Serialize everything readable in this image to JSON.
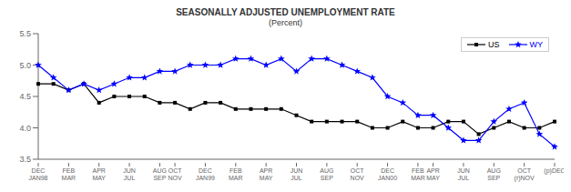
{
  "chart_data": {
    "type": "line",
    "title": "SEASONALLY ADJUSTED UNEMPLOYMENT RATE",
    "subtitle": "(Percent)",
    "categories": [
      "DEC\nJAN98",
      null,
      "FEB\nMAR",
      null,
      "APR\nMAY",
      null,
      "JUN\nJUL",
      null,
      "AUG\nSEP",
      "OCT\nNOV",
      null,
      "DEC\nJAN99",
      null,
      "FEB\nMAR",
      null,
      "APR\nMAY",
      null,
      "JUN\nJUL",
      null,
      "AUG\nSEP",
      null,
      "OCT\nNOV",
      null,
      "DEC\nJAN00",
      null,
      "FEB\nMAR",
      "APR\nMAY",
      null,
      "JUN\nJUL",
      null,
      "AUG\nSEP",
      null,
      "OCT\n(r)NOV",
      null,
      "(p)DEC"
    ],
    "series": [
      {
        "name": "US",
        "color": "#000000",
        "marker": "square",
        "values": [
          4.7,
          4.7,
          4.6,
          4.7,
          4.4,
          4.5,
          4.5,
          4.5,
          4.4,
          4.4,
          4.3,
          4.4,
          4.4,
          4.3,
          4.3,
          4.3,
          4.3,
          4.2,
          4.1,
          4.1,
          4.1,
          4.1,
          4.0,
          4.0,
          4.1,
          4.0,
          4.0,
          4.1,
          4.1,
          3.9,
          4.0,
          4.1,
          4.0,
          4.0,
          4.1
        ]
      },
      {
        "name": "WY",
        "color": "#0000ff",
        "marker": "star",
        "values": [
          5.0,
          4.8,
          4.6,
          4.7,
          4.6,
          4.7,
          4.8,
          4.8,
          4.9,
          4.9,
          5.0,
          5.0,
          5.0,
          5.1,
          5.1,
          5.0,
          5.1,
          4.9,
          5.1,
          5.1,
          5.0,
          4.9,
          4.8,
          4.5,
          4.4,
          4.2,
          4.2,
          4.0,
          3.8,
          3.8,
          4.1,
          4.3,
          4.4,
          3.9,
          3.7
        ]
      }
    ],
    "ylim": [
      3.5,
      5.5
    ],
    "yticks": [
      3.5,
      {
        "value": 4.0,
        "label": "4.0"
      },
      4.5,
      {
        "value": 5.0,
        "label": "5.0"
      },
      5.5
    ],
    "grid": false,
    "legend": "upper right"
  }
}
